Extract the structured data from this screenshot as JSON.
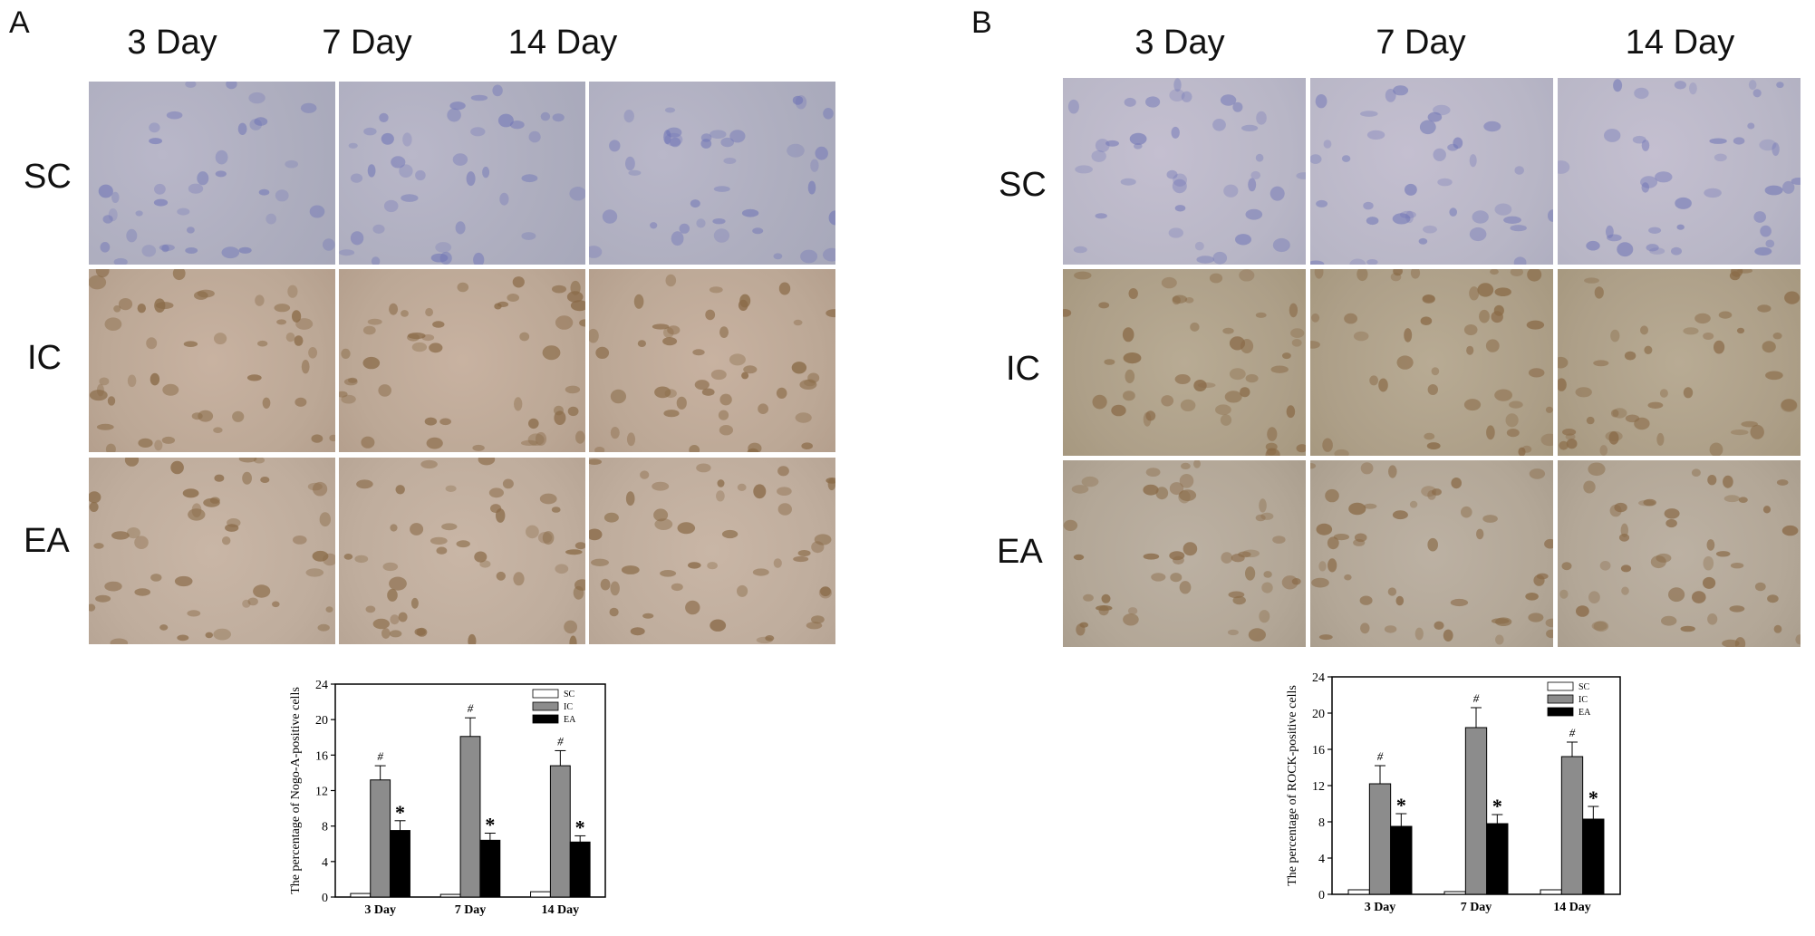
{
  "panels": [
    {
      "letter": "A",
      "col_headers": [
        "3 Day",
        "7 Day",
        "14 Day"
      ],
      "row_labels": [
        "SC",
        "IC",
        "EA"
      ]
    },
    {
      "letter": "B",
      "col_headers": [
        "3 Day",
        "7 Day",
        "14 Day"
      ],
      "row_labels": [
        "SC",
        "IC",
        "EA"
      ]
    }
  ],
  "colors": {
    "SC": "#ffffff",
    "IC": "#8c8c8c",
    "EA": "#000000",
    "sc_tissue": "#aeaebf",
    "ic_tissue": "#bca896",
    "ea_tissue": "#bfad9d",
    "nucleus_blue": "#6f74b6",
    "dab_brown": "#8a6b48"
  },
  "chart_data": [
    {
      "type": "bar",
      "categories": [
        "3 Day",
        "7 Day",
        "14 Day"
      ],
      "series": [
        {
          "name": "SC",
          "values": [
            0.4,
            0.3,
            0.6
          ],
          "errors": [
            0.1,
            0.1,
            0.2
          ]
        },
        {
          "name": "IC",
          "values": [
            13.2,
            18.1,
            14.8
          ],
          "errors": [
            1.6,
            2.1,
            1.7
          ]
        },
        {
          "name": "EA",
          "values": [
            7.5,
            6.4,
            6.2
          ],
          "errors": [
            1.1,
            0.8,
            0.7
          ]
        }
      ],
      "annotations": [
        {
          "series": "IC",
          "category": "3 Day",
          "text": "#"
        },
        {
          "series": "IC",
          "category": "7 Day",
          "text": "#"
        },
        {
          "series": "IC",
          "category": "14 Day",
          "text": "#"
        },
        {
          "series": "EA",
          "category": "3 Day",
          "text": "*"
        },
        {
          "series": "EA",
          "category": "7 Day",
          "text": "*"
        },
        {
          "series": "EA",
          "category": "14 Day",
          "text": "*"
        }
      ],
      "ylabel": "The percentage of Nogo-A-positive cells",
      "xlabel": "",
      "ylim": [
        0,
        24
      ],
      "yticks": [
        0,
        4,
        8,
        12,
        16,
        20,
        24
      ],
      "legend": "top-right",
      "grid": false
    },
    {
      "type": "bar",
      "categories": [
        "3 Day",
        "7 Day",
        "14 Day"
      ],
      "series": [
        {
          "name": "SC",
          "values": [
            0.5,
            0.3,
            0.5
          ],
          "errors": [
            0.1,
            0.1,
            0.1
          ]
        },
        {
          "name": "IC",
          "values": [
            12.2,
            18.4,
            15.2
          ],
          "errors": [
            2.0,
            2.2,
            1.6
          ]
        },
        {
          "name": "EA",
          "values": [
            7.5,
            7.8,
            8.3
          ],
          "errors": [
            1.4,
            1.0,
            1.4
          ]
        }
      ],
      "annotations": [
        {
          "series": "IC",
          "category": "3 Day",
          "text": "#"
        },
        {
          "series": "IC",
          "category": "7 Day",
          "text": "#"
        },
        {
          "series": "IC",
          "category": "14 Day",
          "text": "#"
        },
        {
          "series": "EA",
          "category": "3 Day",
          "text": "*"
        },
        {
          "series": "EA",
          "category": "7 Day",
          "text": "*"
        },
        {
          "series": "EA",
          "category": "14 Day",
          "text": "*"
        }
      ],
      "ylabel": "The percentage of ROCK-positive cells",
      "xlabel": "",
      "ylim": [
        0,
        24
      ],
      "yticks": [
        0,
        4,
        8,
        12,
        16,
        20,
        24
      ],
      "legend": "top-right",
      "grid": false
    }
  ]
}
